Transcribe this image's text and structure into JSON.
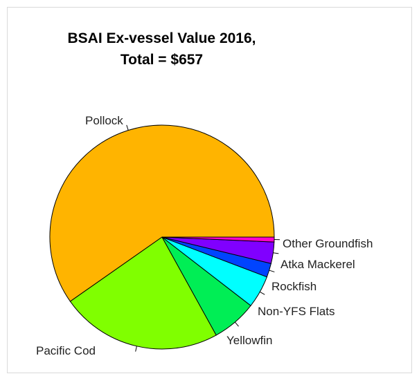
{
  "chart_data": {
    "type": "pie",
    "title_line1": "BSAI Ex-vessel Value 2016,",
    "title_line2": "Total = $657",
    "slices": [
      {
        "label": "Pollock",
        "value": 0.598,
        "color": "#FFB400"
      },
      {
        "label": "Pacific Cod",
        "value": 0.233,
        "color": "#80FF00"
      },
      {
        "label": "Yellowfin",
        "value": 0.065,
        "color": "#00EE55"
      },
      {
        "label": "Non-YFS Flats",
        "value": 0.047,
        "color": "#00FFFF"
      },
      {
        "label": "Rockfish",
        "value": 0.02,
        "color": "#0044FF"
      },
      {
        "label": "Atka Mackerel",
        "value": 0.031,
        "color": "#8000FF"
      },
      {
        "label": "Other Groundfish",
        "value": 0.007,
        "color": "#FF00CC"
      }
    ]
  }
}
